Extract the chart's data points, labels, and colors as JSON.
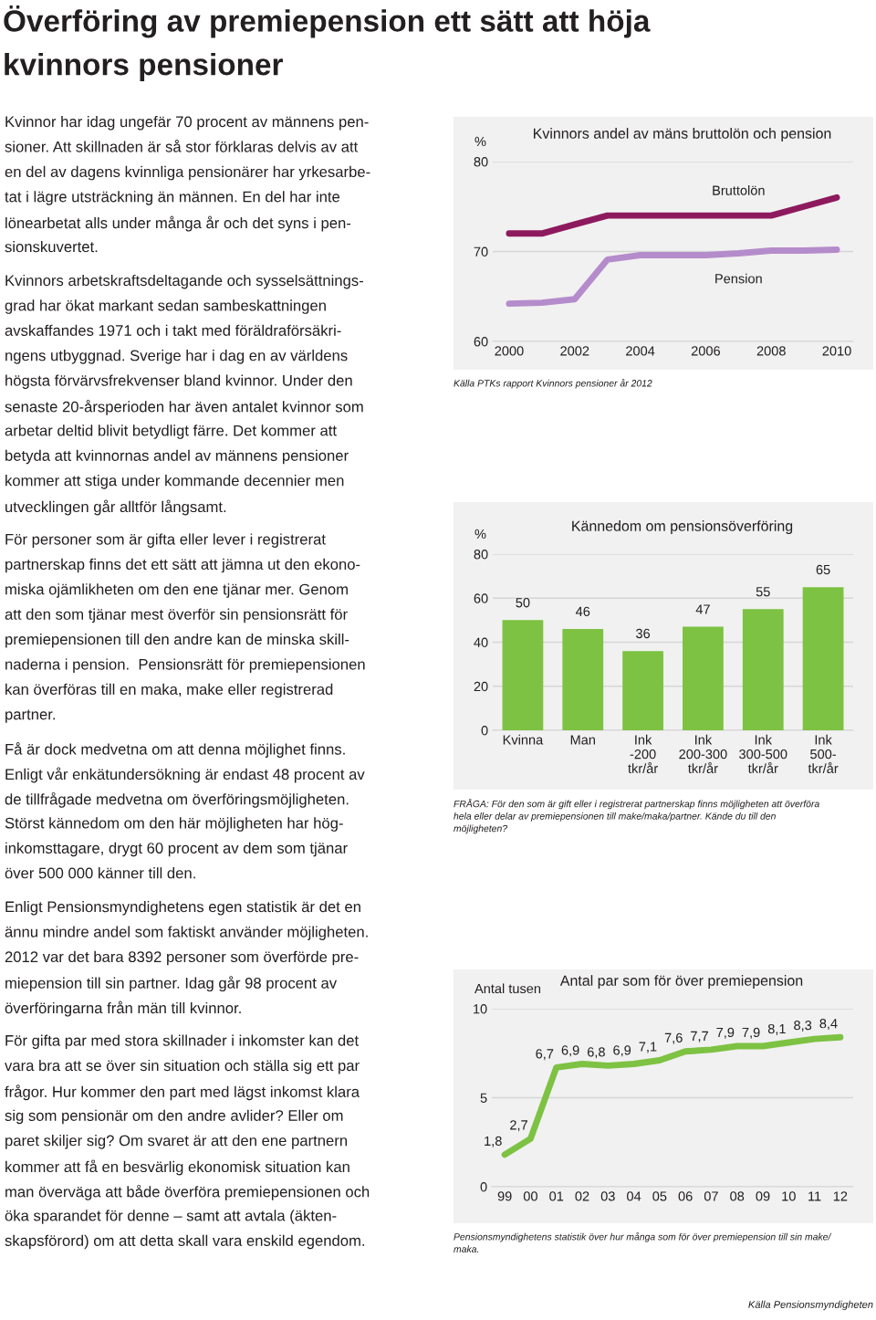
{
  "chart_data": [
    {
      "type": "other",
      "title": "Överföring av premiepension ett sätt att höja\nkvinnors pensioner",
      "annotations": [
        "Kvinnor har idag ungefär 70 procent av männens pen-\nsioner. Att skillnaden är så stor förklaras delvis av att\nen del av dagens kvinnliga pensionärer har yrkesarbe-\ntat i lägre utsträckning än männen. En del har inte\nlönearbetat alls under många år och det syns i pen-\nsionskuvertet.",
        "Kvinnors arbetskraftsdeltagande och sysselsättnings-\ngrad har ökat markant sedan sambeskattningen\navskaffandes 1971 och i takt med föräldraförsäkri-\nngens utbyggnad. Sverige har i dag en av världens\nhögsta förvärvsfrekvenser bland kvinnor. Under den\nsenaste 20-årsperioden har även antalet kvinnor som\narbetar deltid blivit betydligt färre. Det kommer att\nbetyda att kvinnornas andel av männens pensioner\nkommer att stiga under kommande decennier men\nutvecklingen går alltför långsamt.",
        "För personer som är gifta eller lever i registrerat\npartnerskap finns det ett sätt att jämna ut den ekono-\nmiska ojämlikheten om den ene tjänar mer. Genom\natt den som tjänar mest överför sin pensionsrätt för\npremiepensionen till den andre kan de minska skill-\nnaderna i pension.  Pensionsrätt för premiepensionen\nkan överföras till en maka, make eller registrerad\npartner.",
        "Få är dock medvetna om att denna möjlighet finns.\nEnligt vår enkätundersökning är endast 48 procent av\nde tillfrågade medvetna om överföringsmöjligheten.\nStörst kännedom om den här möjligheten har hög-\ninkomsttagare, drygt 60 procent av dem som tjänar\növer 500 000 känner till den.",
        "Enligt Pensionsmyndighetens egen statistik är det en\nännu mindre andel som faktiskt använder möjligheten.\n2012 var det bara 8392 personer som överförde pre-\nmiepension till sin partner. Idag går 98 procent av\növerföringarna från män till kvinnor.",
        "För gifta par med stora skillnader i inkomster kan det\nvara bra att se över sin situation och ställa sig ett par\nfrågor. Hur kommer den part med lägst inkomst klara\nsig som pensionär om den andre avlider? Eller om\nparet skiljer sig? Om svaret är att den ene partnern\nkommer att få en besvärlig ekonomisk situation kan\nman överväga att både överföra premiepensionen och\nöka sparandet för denne – samt att avtala (äkten-\nskapsförord) om att detta skall vara enskild egendom."
      ]
    },
    {
      "type": "line",
      "title": "Kvinnors andel av mäns bruttolön och pension",
      "ylabel": "%",
      "x": [
        2000,
        2001,
        2002,
        2003,
        2004,
        2005,
        2006,
        2007,
        2008,
        2009,
        2010
      ],
      "series": [
        {
          "name": "Bruttolön",
          "color": "#8e1a5e",
          "values": [
            72.0,
            72.0,
            73.0,
            74.0,
            74.0,
            74.0,
            74.0,
            74.0,
            74.0,
            75.0,
            76.0
          ]
        },
        {
          "name": "Pension",
          "color": "#b58ccb",
          "values": [
            64.2,
            64.3,
            64.7,
            69.1,
            69.6,
            69.6,
            69.6,
            69.8,
            70.1,
            70.1,
            70.2
          ]
        }
      ],
      "xlim": [
        1999.5,
        2010.5
      ],
      "xticks": [
        2000,
        2002,
        2004,
        2006,
        2008,
        2010
      ],
      "ylim": [
        60,
        80
      ],
      "yticks": [
        60,
        70,
        80
      ],
      "grid": "y",
      "annotations": [
        "Källa PTKs rapport Kvinnors pensioner år 2012"
      ]
    },
    {
      "type": "bar",
      "title": "Kännedom om pensionsöverföring",
      "ylabel": "%",
      "categories": [
        "Kvinna",
        "Man",
        "Ink\n-200\ntkr/år",
        "Ink\n200-300\ntkr/år",
        "Ink\n300-500\ntkr/år",
        "Ink\n500-\ntkr/år"
      ],
      "values": [
        50,
        46,
        36,
        47,
        55,
        65
      ],
      "color": "#7dc242",
      "ylim": [
        0,
        80
      ],
      "yticks": [
        0,
        20,
        40,
        60,
        80
      ],
      "grid": "y",
      "data_labels": true,
      "annotations": [
        "FRÅGA: För den som är gift eller i registrerat partnerskap finns möjligheten att överföra\nhela eller delar av premiepensionen till make/maka/partner. Kände du till den\nmöjligheten?"
      ]
    },
    {
      "type": "line",
      "title": "Antal par som för över premiepension",
      "ylabel": "Antal tusen",
      "categories": [
        "99",
        "00",
        "01",
        "02",
        "03",
        "04",
        "05",
        "06",
        "07",
        "08",
        "09",
        "10",
        "11",
        "12"
      ],
      "values": [
        1.8,
        2.7,
        6.7,
        6.9,
        6.8,
        6.9,
        7.1,
        7.6,
        7.7,
        7.9,
        7.9,
        8.1,
        8.3,
        8.4
      ],
      "value_labels": [
        "1,8",
        "2,7",
        "6,7",
        "6,9",
        "6,8",
        "6,9",
        "7,1",
        "7,6",
        "7,7",
        "7,9",
        "7,9",
        "8,1",
        "8,3",
        "8,4"
      ],
      "color": "#7dc242",
      "ylim": [
        0,
        10
      ],
      "yticks": [
        0,
        5,
        10
      ],
      "grid": "y",
      "annotations": [
        "Pensionsmyndighetens statistik över hur många som för över premiepension till sin make/\nmaka.",
        "Källa Pensionsmyndigheten"
      ]
    }
  ]
}
